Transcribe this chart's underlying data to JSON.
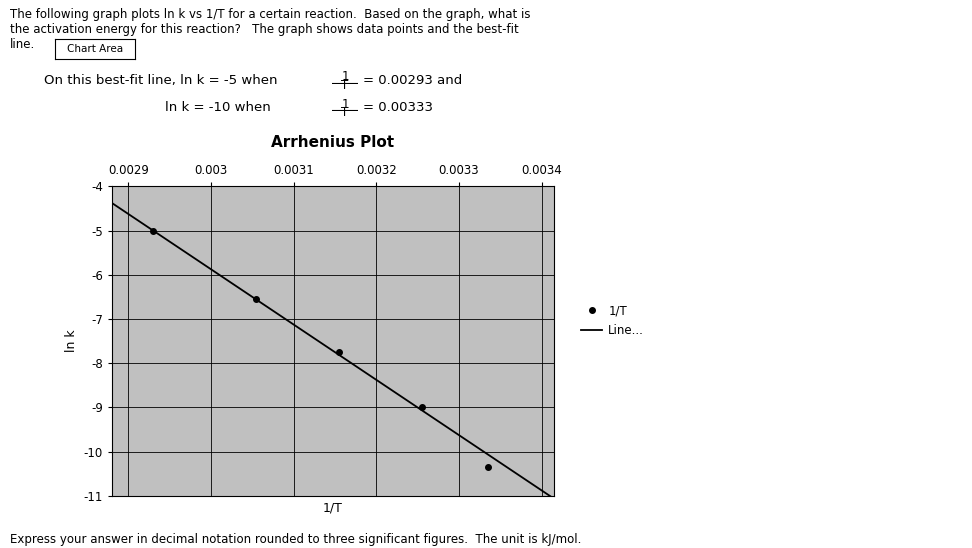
{
  "title": "Arrhenius Plot",
  "xlabel": "1/T",
  "ylabel": "ln k",
  "xlim": [
    0.00288,
    0.003415
  ],
  "ylim": [
    -11,
    -4
  ],
  "x_ticks": [
    0.0029,
    0.003,
    0.0031,
    0.0032,
    0.0033,
    0.0034
  ],
  "x_tick_labels": [
    "0.0029",
    "0.003",
    "0.0031",
    "0.0032",
    "0.0033",
    "0.0034"
  ],
  "y_ticks": [
    -4,
    -5,
    -6,
    -7,
    -8,
    -9,
    -10,
    -11
  ],
  "data_points_x": [
    0.00293,
    0.003055,
    0.003155,
    0.003255,
    0.003335
  ],
  "data_points_y": [
    -5.0,
    -6.55,
    -7.75,
    -9.0,
    -10.35
  ],
  "line_y1_x": 0.00293,
  "line_y1": -5.0,
  "line_y2_x": 0.00333,
  "line_y2": -10.0,
  "plot_bg_color": "#c0c0c0",
  "marker_color": "#000000",
  "line_color": "#000000",
  "legend_marker_label": "1/T",
  "legend_line_label": "Line...",
  "footer_text": "Express your answer in decimal notation rounded to three significant figures.  The unit is kJ/mol.",
  "title_fontsize": 11,
  "tick_fontsize": 8.5,
  "label_fontsize": 9,
  "grid_color": "#000000",
  "grid_linewidth": 0.6
}
